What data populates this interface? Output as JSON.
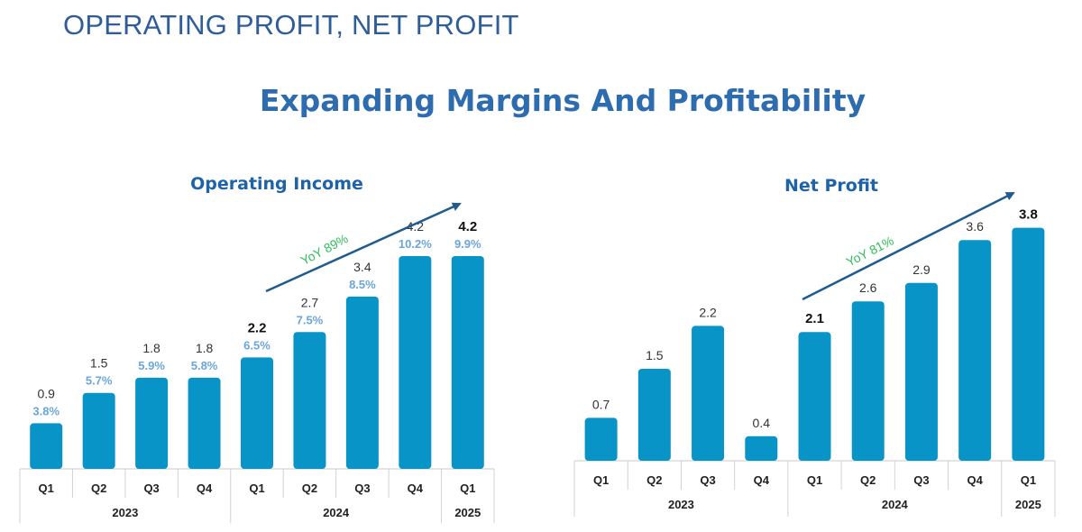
{
  "header": {
    "title": "OPERATING PROFIT, NET PROFIT"
  },
  "page_title": "Expanding Margins And Profitability",
  "colors": {
    "bar": "#0994c7",
    "arrow": "#1f5b8e",
    "yoy": "#2fbf5a",
    "margin": "#6aa6dc",
    "title": "#1e63a8"
  },
  "chart_data": [
    {
      "type": "bar",
      "title": "Operating Income",
      "categories": [
        "Q1",
        "Q2",
        "Q3",
        "Q4",
        "Q1",
        "Q2",
        "Q3",
        "Q4",
        "Q1"
      ],
      "years": [
        {
          "label": "2023",
          "count": 4
        },
        {
          "label": "2024",
          "count": 4
        },
        {
          "label": "2025",
          "count": 1
        }
      ],
      "values": [
        0.9,
        1.5,
        1.8,
        1.8,
        2.2,
        2.7,
        3.4,
        4.2,
        4.2
      ],
      "value_labels": [
        "0.9",
        "1.5",
        "1.8",
        "1.8",
        "2.2",
        "2.7",
        "3.4",
        "4.2",
        "4.2"
      ],
      "bold_labels": [
        4,
        8
      ],
      "margins": [
        "3.8%",
        "5.7%",
        "5.9%",
        "5.8%",
        "6.5%",
        "7.5%",
        "8.5%",
        "10.2%",
        "9.9%"
      ],
      "annotation": "YoY 89%",
      "ylim": [
        0,
        4.5
      ]
    },
    {
      "type": "bar",
      "title": "Net Profit",
      "categories": [
        "Q1",
        "Q2",
        "Q3",
        "Q4",
        "Q1",
        "Q2",
        "Q3",
        "Q4",
        "Q1"
      ],
      "years": [
        {
          "label": "2023",
          "count": 4
        },
        {
          "label": "2024",
          "count": 4
        },
        {
          "label": "2025",
          "count": 1
        }
      ],
      "values": [
        0.7,
        1.5,
        2.2,
        0.4,
        2.1,
        2.6,
        2.9,
        3.6,
        3.8
      ],
      "value_labels": [
        "0.7",
        "1.5",
        "2.2",
        "0.4",
        "2.1",
        "2.6",
        "2.9",
        "3.6",
        "3.8"
      ],
      "bold_labels": [
        4,
        8
      ],
      "annotation": "YoY 81%",
      "ylim": [
        0,
        4.2
      ]
    }
  ]
}
